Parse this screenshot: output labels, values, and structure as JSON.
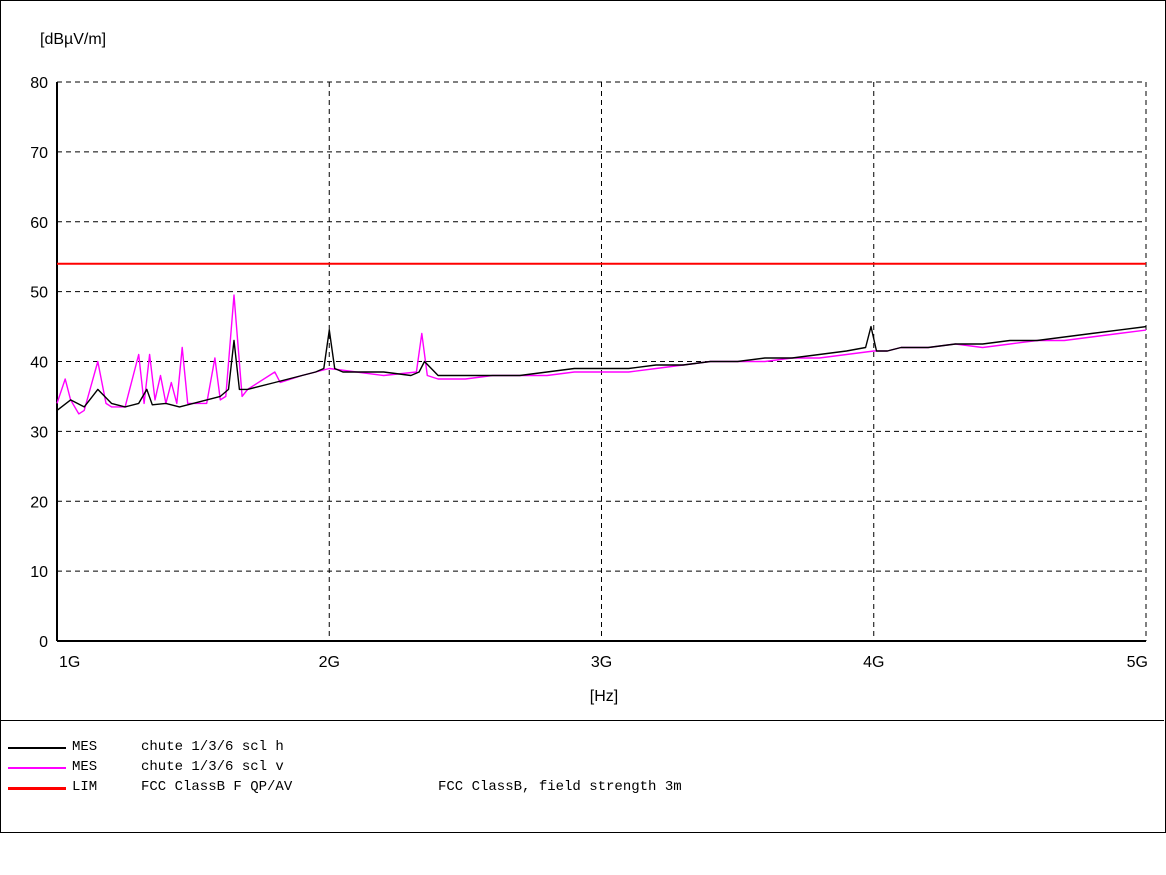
{
  "chart_data": {
    "type": "line",
    "ylabel": "[dBµV/m]",
    "xlabel": "[Hz]",
    "ylim": [
      0,
      80
    ],
    "xlim": [
      1000000000,
      5000000000
    ],
    "x_scale": "linear",
    "grid": true,
    "y_ticks": [
      "0",
      "10",
      "20",
      "30",
      "40",
      "50",
      "60",
      "70",
      "80"
    ],
    "x_ticks": [
      "1G",
      "2G",
      "3G",
      "4G",
      "5G"
    ],
    "x_tick_values": [
      1000000000,
      2000000000,
      3000000000,
      4000000000,
      5000000000
    ],
    "legend_position": "bottom",
    "series": [
      {
        "kind": "MES",
        "name": "chute 1/3/6 scl h",
        "description": "",
        "color": "#000000",
        "x": [
          1000000000,
          1050000000,
          1100000000,
          1130000000,
          1150000000,
          1200000000,
          1250000000,
          1300000000,
          1330000000,
          1350000000,
          1400000000,
          1450000000,
          1500000000,
          1550000000,
          1600000000,
          1630000000,
          1650000000,
          1670000000,
          1700000000,
          1800000000,
          1900000000,
          1950000000,
          1980000000,
          2000000000,
          2020000000,
          2050000000,
          2100000000,
          2200000000,
          2300000000,
          2330000000,
          2350000000,
          2400000000,
          2500000000,
          2600000000,
          2700000000,
          2800000000,
          2900000000,
          3000000000,
          3100000000,
          3200000000,
          3300000000,
          3400000000,
          3500000000,
          3600000000,
          3700000000,
          3800000000,
          3900000000,
          3970000000,
          3990000000,
          4010000000,
          4050000000,
          4100000000,
          4200000000,
          4300000000,
          4400000000,
          4500000000,
          4600000000,
          4700000000,
          4800000000,
          4900000000,
          5000000000
        ],
        "y": [
          33,
          34.5,
          33.5,
          35,
          36,
          34,
          33.5,
          34,
          36,
          33.8,
          34,
          33.5,
          34,
          34.5,
          35,
          36,
          43,
          36,
          36,
          37,
          38,
          38.5,
          39,
          44.5,
          39,
          38.5,
          38.5,
          38.5,
          38,
          38.5,
          40,
          38,
          38,
          38,
          38,
          38.5,
          39,
          39,
          39,
          39.5,
          39.5,
          40,
          40,
          40.5,
          40.5,
          41,
          41.5,
          42,
          45,
          41.5,
          41.5,
          42,
          42,
          42.5,
          42.5,
          43,
          43,
          43.5,
          44,
          44.5,
          45
        ]
      },
      {
        "kind": "MES",
        "name": "chute 1/3/6 scl v",
        "description": "",
        "color": "#ff00ff",
        "x": [
          1000000000,
          1030000000,
          1050000000,
          1080000000,
          1100000000,
          1150000000,
          1180000000,
          1200000000,
          1250000000,
          1300000000,
          1320000000,
          1340000000,
          1360000000,
          1380000000,
          1400000000,
          1420000000,
          1440000000,
          1460000000,
          1480000000,
          1500000000,
          1550000000,
          1580000000,
          1600000000,
          1620000000,
          1650000000,
          1680000000,
          1700000000,
          1800000000,
          1820000000,
          1900000000,
          2000000000,
          2100000000,
          2200000000,
          2320000000,
          2340000000,
          2360000000,
          2400000000,
          2500000000,
          2600000000,
          2700000000,
          2800000000,
          2900000000,
          3000000000,
          3100000000,
          3200000000,
          3300000000,
          3400000000,
          3500000000,
          3600000000,
          3700000000,
          3800000000,
          3900000000,
          4000000000,
          4050000000,
          4100000000,
          4200000000,
          4300000000,
          4400000000,
          4500000000,
          4600000000,
          4700000000,
          4800000000,
          4900000000,
          5000000000
        ],
        "y": [
          34,
          37.5,
          34.5,
          32.5,
          33,
          40,
          34,
          33.5,
          33.5,
          41,
          34,
          41,
          34.5,
          38,
          34,
          37,
          34,
          42,
          34,
          34,
          34,
          40.5,
          34.5,
          35,
          49.5,
          35,
          36,
          38.5,
          37,
          38,
          39,
          38.5,
          38,
          38.5,
          44,
          38,
          37.5,
          37.5,
          38,
          38,
          38,
          38.5,
          38.5,
          38.5,
          39,
          39.5,
          40,
          40,
          40,
          40.5,
          40.5,
          41,
          41.5,
          41.5,
          42,
          42,
          42.5,
          42,
          42.5,
          43,
          43,
          43.5,
          44,
          44.5
        ]
      },
      {
        "kind": "LIM",
        "name": "FCC ClassB F QP/AV",
        "description": "FCC ClassB, field strength 3m",
        "color": "#ff0000",
        "x": [
          1000000000,
          5000000000
        ],
        "y": [
          54,
          54
        ]
      }
    ]
  }
}
